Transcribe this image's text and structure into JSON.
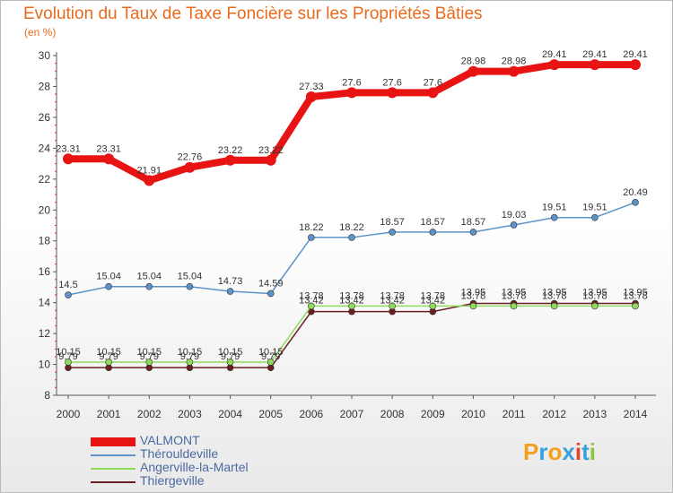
{
  "header": {
    "title": "Evolution du Taux de Taxe Foncière sur les Propriétés Bâties",
    "unit": "(en %)"
  },
  "logo": {
    "text": "Proxiti",
    "letters": [
      "P",
      "r",
      "o",
      "x",
      "i",
      "t",
      "i"
    ],
    "colors": [
      "#f2a01e",
      "#39a0dc",
      "#f2a01e",
      "#39a0dc",
      "#e8412b",
      "#39a0dc",
      "#8cc63f"
    ]
  },
  "chart_data": {
    "type": "line",
    "title": "Evolution du Taux de Taxe Foncière sur les Propriétés Bâties",
    "ylabel": "(en %)",
    "xlabel": "",
    "ylim": [
      8,
      30
    ],
    "yticks": [
      8,
      10,
      12,
      14,
      16,
      18,
      20,
      22,
      24,
      26,
      28,
      30
    ],
    "grid": false,
    "legend_position": "bottom-left",
    "x": [
      "2000",
      "2001",
      "2002",
      "2003",
      "2004",
      "2005",
      "2006",
      "2007",
      "2008",
      "2009",
      "2010",
      "2011",
      "2012",
      "2013",
      "2014"
    ],
    "series": [
      {
        "name": "Thiergeville",
        "color": "#6b1f1f",
        "values": [
          9.79,
          9.79,
          9.79,
          9.79,
          9.79,
          9.79,
          13.42,
          13.42,
          13.42,
          13.42,
          13.95,
          13.95,
          13.95,
          13.95,
          13.95
        ],
        "labels": [
          "9.79",
          "9.79",
          "9.79",
          "9.79",
          "9.79",
          "9.79",
          "13.42",
          "13.42",
          "13.42",
          "13.42",
          "13.95",
          "13.95",
          "13.95",
          "13.95",
          "13.95"
        ]
      },
      {
        "name": "Angerville-la-Martel",
        "color": "#8fdc5a",
        "values": [
          10.15,
          10.15,
          10.15,
          10.15,
          10.15,
          10.15,
          13.78,
          13.78,
          13.78,
          13.78,
          13.78,
          13.78,
          13.78,
          13.78,
          13.78
        ],
        "labels": [
          "10.15",
          "10.15",
          "10.15",
          "10.15",
          "10.15",
          "10.15",
          "13.78",
          "13.78",
          "13.78",
          "13.78",
          "13.78",
          "13.78",
          "13.78",
          "13.78",
          "13.78"
        ]
      },
      {
        "name": "Thérouldeville",
        "color": "#5c93c9",
        "values": [
          14.5,
          15.04,
          15.04,
          15.04,
          14.73,
          14.59,
          18.22,
          18.22,
          18.57,
          18.57,
          18.57,
          19.03,
          19.51,
          19.51,
          20.49
        ],
        "labels": [
          "14.5",
          "15.04",
          "15.04",
          "15.04",
          "14.73",
          "14.59",
          "18.22",
          "18.22",
          "18.57",
          "18.57",
          "18.57",
          "19.03",
          "19.51",
          "19.51",
          "20.49"
        ]
      },
      {
        "name": "VALMONT",
        "color": "#e81414",
        "values": [
          23.31,
          23.31,
          21.91,
          22.76,
          23.22,
          23.22,
          27.33,
          27.6,
          27.6,
          27.6,
          28.98,
          28.98,
          29.41,
          29.41,
          29.41
        ],
        "labels": [
          "23.31",
          "23.31",
          "21.91",
          "22.76",
          "23.22",
          "23.22",
          "27.33",
          "27.6",
          "27.6",
          "27.6",
          "28.98",
          "28.98",
          "29.41",
          "29.41",
          "29.41"
        ]
      }
    ],
    "legend_order": [
      "VALMONT",
      "Thérouldeville",
      "Angerville-la-Martel",
      "Thiergeville"
    ]
  }
}
